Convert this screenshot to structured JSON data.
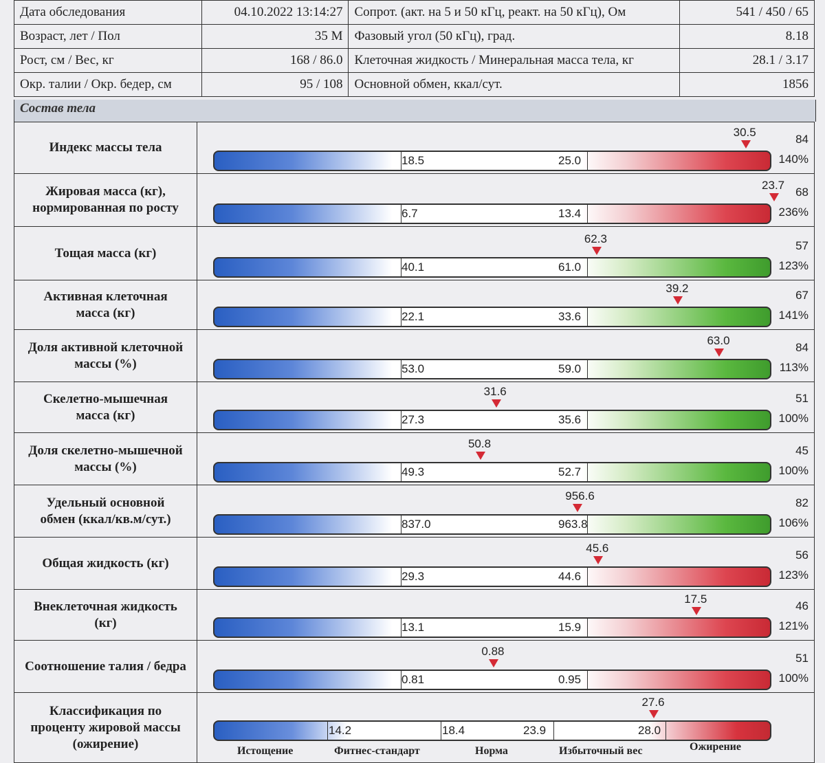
{
  "header": {
    "rows": [
      {
        "l1": "Дата обследования",
        "v1": "04.10.2022 13:14:27",
        "l2": "Сопрот. (акт. на 5 и 50 кГц, реакт. на 50 кГц), Ом",
        "v2": "541 / 450 / 65"
      },
      {
        "l1": "Возраст, лет / Пол",
        "v1": "35 М",
        "l2": "Фазовый угол (50 кГц), град.",
        "v2": "8.18"
      },
      {
        "l1": "Рост, см / Вес, кг",
        "v1": "168 / 86.0",
        "l2": "Клеточная жидкость / Минеральная масса тела, кг",
        "v2": "28.1 / 3.17"
      },
      {
        "l1": "Окр. талии / Окр. бедер, см",
        "v1": "95 / 108",
        "l2": "Основной обмен, ккал/сут.",
        "v2": "1856"
      }
    ]
  },
  "section_title": "Состав тела",
  "metrics": [
    {
      "label": "Индекс массы тела",
      "low": "18.5",
      "high": "25.0",
      "value": "30.5",
      "pos": 0.954,
      "scale": "84",
      "percent": "140%",
      "color": "red"
    },
    {
      "label": "Жировая масса (кг),\nнормированная по росту",
      "low": "6.7",
      "high": "13.4",
      "value": "23.7",
      "pos": 1.005,
      "scale": "68",
      "percent": "236%",
      "color": "red"
    },
    {
      "label": "Тощая масса (кг)",
      "low": "40.1",
      "high": "61.0",
      "value": "62.3",
      "pos": 0.687,
      "scale": "57",
      "percent": "123%",
      "color": "green"
    },
    {
      "label": "Активная клеточная\nмасса (кг)",
      "low": "22.1",
      "high": "33.6",
      "value": "39.2",
      "pos": 0.833,
      "scale": "67",
      "percent": "141%",
      "color": "green"
    },
    {
      "label": "Доля активной клеточной\nмассы (%)",
      "low": "53.0",
      "high": "59.0",
      "value": "63.0",
      "pos": 0.907,
      "scale": "84",
      "percent": "113%",
      "color": "green"
    },
    {
      "label": "Скелетно-мышечная\nмасса (кг)",
      "low": "27.3",
      "high": "35.6",
      "value": "31.6",
      "pos": 0.507,
      "scale": "51",
      "percent": "100%",
      "color": "green"
    },
    {
      "label": "Доля скелетно-мышечной\nмассы (%)",
      "low": "49.3",
      "high": "52.7",
      "value": "50.8",
      "pos": 0.479,
      "scale": "45",
      "percent": "100%",
      "color": "green"
    },
    {
      "label": "Удельный основной\nобмен (ккал/кв.м/сут.)",
      "low": "837.0",
      "high": "963.8",
      "value": "956.6",
      "pos": 0.653,
      "scale": "82",
      "percent": "106%",
      "color": "green"
    },
    {
      "label": "Общая жидкость (кг)",
      "low": "29.3",
      "high": "44.6",
      "value": "45.6",
      "pos": 0.69,
      "scale": "56",
      "percent": "123%",
      "color": "red"
    },
    {
      "label": "Внеклеточная жидкость\n(кг)",
      "low": "13.1",
      "high": "15.9",
      "value": "17.5",
      "pos": 0.866,
      "scale": "46",
      "percent": "121%",
      "color": "red"
    },
    {
      "label": "Соотношение талия / бедра",
      "low": "0.81",
      "high": "0.95",
      "value": "0.88",
      "pos": 0.503,
      "scale": "51",
      "percent": "100%",
      "color": "red"
    }
  ],
  "classification": {
    "label": "Классификация по\nпроценту жировой массы\n(ожирение)",
    "thresholds": [
      "14.2",
      "18.4",
      "23.9",
      "28.0"
    ],
    "value": "27.6",
    "categories": [
      "Истощение",
      "Фитнес-стандарт",
      "Норма",
      "Избыточный вес",
      "Ожирение"
    ]
  }
}
